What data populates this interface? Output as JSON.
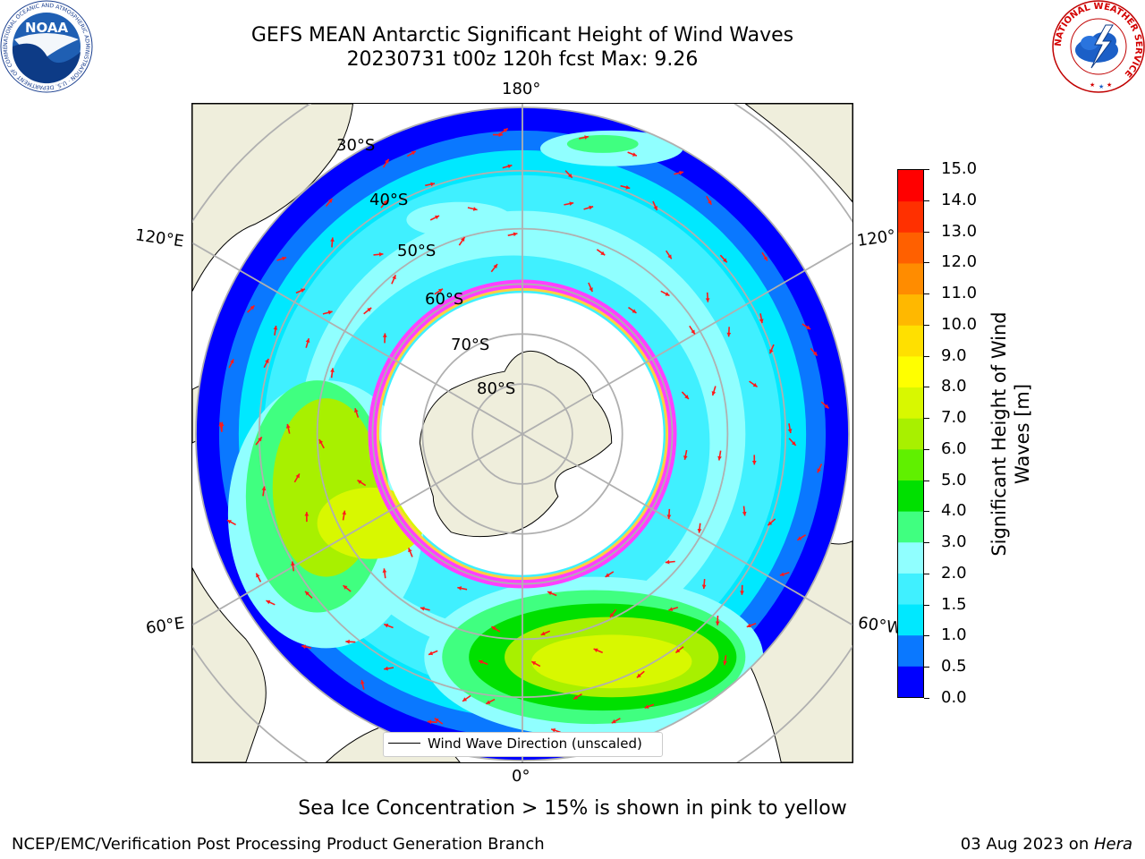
{
  "header": {
    "title_line1": "GEFS MEAN Antarctic Significant Height of Wind Waves",
    "title_line2": "20230731 t00z 120h fcst   Max: 9.26"
  },
  "logos": {
    "noaa_text": "NOAA",
    "noaa_ring_text": "NATIONAL OCEANIC AND ATMOSPHERIC ADMINISTRATION · U.S. DEPARTMENT OF COMMERCE",
    "nws_ring_text": "NATIONAL WEATHER SERVICE"
  },
  "map": {
    "projection": "south-polar-stereographic",
    "longitude_labels": [
      "180°",
      "120°E",
      "120°",
      "60°E",
      "60°W",
      "0°"
    ],
    "latitude_labels": [
      "30°S",
      "40°S",
      "50°S",
      "60°S",
      "70°S",
      "80°S"
    ],
    "colors": {
      "land": "#efeedc",
      "ice_free_sea": "#ffffff",
      "grid": "#b0b0b0",
      "arrow": "#ff1a1a",
      "ice_edge": "#ff40ff",
      "ice_inner": "#ffd040"
    },
    "legend_label": "Wind Wave Direction (unscaled)"
  },
  "colorbar": {
    "label": "Significant Height of Wind Waves [m]",
    "label_line1": "Significant Height of Wind",
    "label_line2": "Waves [m]",
    "ticks": [
      "0.0",
      "0.5",
      "1.0",
      "1.5",
      "2.0",
      "3.0",
      "4.0",
      "5.0",
      "6.0",
      "7.0",
      "8.0",
      "9.0",
      "10.0",
      "11.0",
      "12.0",
      "13.0",
      "14.0",
      "15.0"
    ],
    "colors": [
      "#0000ff",
      "#0a78ff",
      "#00e8ff",
      "#40f0ff",
      "#90ffff",
      "#40ff80",
      "#00e000",
      "#60f000",
      "#a8f000",
      "#d8f800",
      "#ffff00",
      "#ffe000",
      "#ffb800",
      "#ff8c00",
      "#ff6000",
      "#ff3000",
      "#ff0000"
    ]
  },
  "caption": "Sea Ice Concentration > 15% is shown in pink to yellow",
  "footer": {
    "left": "NCEP/EMC/Verification Post Processing Product Generation Branch",
    "right_prefix": "03 Aug 2023 on ",
    "right_host": "Hera"
  }
}
